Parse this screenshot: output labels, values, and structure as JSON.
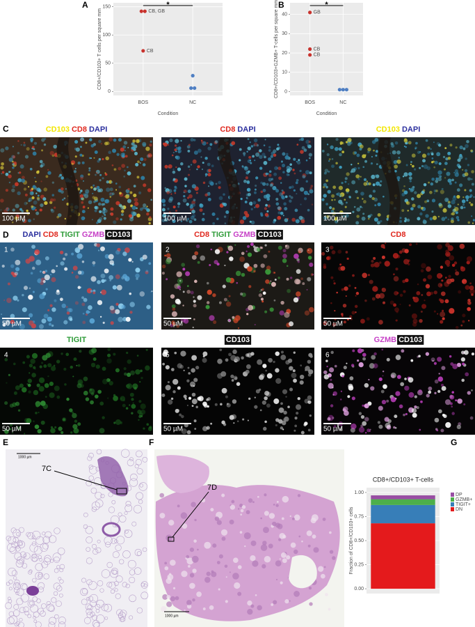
{
  "panel_letters": [
    "A",
    "B",
    "C",
    "D",
    "E",
    "F",
    "G"
  ],
  "chart_data": [
    {
      "type": "scatter",
      "categories": [
        "BOS",
        "NC"
      ],
      "colors": [
        "#c8322d",
        "#4f7fc3"
      ],
      "values": [
        [
          142,
          142,
          72
        ],
        [
          28,
          6,
          6
        ]
      ],
      "point_labels": [
        [
          null,
          "CB, GB",
          "CB"
        ],
        [
          null,
          null,
          null
        ]
      ],
      "ylim": [
        -7,
        157
      ],
      "yticks": [
        0,
        50,
        100,
        150
      ],
      "y_label": "CD8+/CD103+ T cells per square mm",
      "x_label": "Condition",
      "annotation": "*",
      "grid": true
    },
    {
      "type": "scatter",
      "categories": [
        "BOS",
        "NC"
      ],
      "colors": [
        "#c8322d",
        "#4f7fc3"
      ],
      "values": [
        [
          41,
          22,
          19
        ],
        [
          1,
          1,
          1
        ]
      ],
      "point_labels": [
        [
          "GB",
          "CB",
          "CB"
        ],
        [
          null,
          null,
          null
        ]
      ],
      "ylim": [
        -2,
        46
      ],
      "yticks": [
        0,
        10,
        20,
        30,
        40
      ],
      "y_label": "CD8+/CD103+GZMB+ T-cells per square mm",
      "x_label": "Condition",
      "annotation": "*",
      "grid": true
    },
    {
      "type": "bar",
      "title": "CD8+/CD103+ T-cells",
      "categories": [
        null
      ],
      "series": [
        {
          "name": "DN",
          "color": "#e41a1c",
          "values": [
            0.68
          ]
        },
        {
          "name": "TIGIT+",
          "color": "#377eb8",
          "values": [
            0.19
          ]
        },
        {
          "name": "GZMB+",
          "color": "#4daf4a",
          "values": [
            0.06
          ]
        },
        {
          "name": "DP",
          "color": "#984ea3",
          "values": [
            0.04
          ]
        }
      ],
      "ylim": [
        -0.05,
        1.05
      ],
      "yticks": [
        {
          "value": 0,
          "label": "0.00"
        },
        {
          "value": 0.25,
          "label": "0.25"
        },
        {
          "value": 0.5,
          "label": "0.50"
        },
        {
          "value": 0.75,
          "label": "0.75"
        },
        {
          "value": 1,
          "label": "1.00"
        }
      ],
      "y_label": "Fraction of CD8+/CD103+ cells",
      "stacked": true,
      "grid": true,
      "legend": "right"
    }
  ],
  "panel_c": {
    "scale_bar": "100 µM",
    "images": [
      {
        "stains": [
          {
            "text": "CD103",
            "color": "#f2e600"
          },
          {
            "text": "CD8",
            "color": "#e0281e"
          },
          {
            "text": "DAPI",
            "color": "#2b2f9e"
          }
        ]
      },
      {
        "stains": [
          {
            "text": "CD8",
            "color": "#e0281e"
          },
          {
            "text": "DAPI",
            "color": "#2b2f9e"
          }
        ]
      },
      {
        "stains": [
          {
            "text": "CD103",
            "color": "#f2e600"
          },
          {
            "text": "DAPI",
            "color": "#2b2f9e"
          }
        ]
      }
    ]
  },
  "panel_d": {
    "scale_bar": "50 µM",
    "images": [
      {
        "number": 1,
        "stains": [
          {
            "text": "DAPI",
            "color": "#2b2f9e"
          },
          {
            "text": "CD8",
            "color": "#e0281e"
          },
          {
            "text": "TIGIT",
            "color": "#2e9b38"
          },
          {
            "text": "GZMB",
            "color": "#c63fc6"
          },
          {
            "text": "CD103",
            "color": "#ffffff",
            "box": "#111111"
          }
        ]
      },
      {
        "number": 2,
        "stains": [
          {
            "text": "CD8",
            "color": "#e0281e"
          },
          {
            "text": "TIGIT",
            "color": "#2e9b38"
          },
          {
            "text": "GZMB",
            "color": "#c63fc6"
          },
          {
            "text": "CD103",
            "color": "#ffffff",
            "box": "#111111"
          }
        ]
      },
      {
        "number": 3,
        "stains": [
          {
            "text": "CD8",
            "color": "#e0281e"
          }
        ]
      },
      {
        "number": 4,
        "stains": [
          {
            "text": "TIGIT",
            "color": "#2e9b38"
          }
        ]
      },
      {
        "number": 5,
        "stains": [
          {
            "text": "CD103",
            "color": "#ffffff",
            "box": "#111111"
          }
        ]
      },
      {
        "number": 6,
        "stains": [
          {
            "text": "GZMB",
            "color": "#c63fc6"
          },
          {
            "text": "CD103",
            "color": "#ffffff",
            "box": "#111111"
          }
        ]
      }
    ]
  },
  "panel_e": {
    "callout": "7C",
    "scale_bar": "1000 µm"
  },
  "panel_f": {
    "callout": "7D",
    "scale_bar": "1000 µm"
  }
}
